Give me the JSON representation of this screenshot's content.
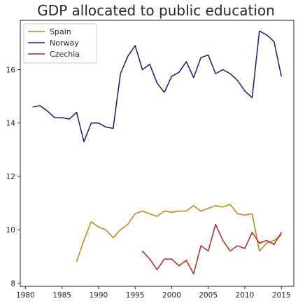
{
  "chart_data": {
    "type": "line",
    "title": "GDP allocated to public education",
    "xlabel": "",
    "ylabel": "",
    "xlim": [
      1979.3,
      2016.7
    ],
    "ylim": [
      7.88,
      17.85
    ],
    "x_ticks": [
      1980,
      1985,
      1990,
      1995,
      2000,
      2005,
      2010,
      2015
    ],
    "y_ticks": [
      8,
      10,
      12,
      14,
      16
    ],
    "grid": false,
    "legend_position": "top-left",
    "series": [
      {
        "name": "Spain",
        "color": "#b8860b",
        "points": [
          [
            1987,
            8.8
          ],
          [
            1988,
            9.6
          ],
          [
            1989,
            10.3
          ],
          [
            1990,
            10.1
          ],
          [
            1991,
            10.0
          ],
          [
            1992,
            9.7
          ],
          [
            1993,
            10.0
          ],
          [
            1994,
            10.2
          ],
          [
            1995,
            10.6
          ],
          [
            1996,
            10.7
          ],
          [
            1997,
            10.6
          ],
          [
            1998,
            10.5
          ],
          [
            1999,
            10.7
          ],
          [
            2000,
            10.65
          ],
          [
            2001,
            10.7
          ],
          [
            2002,
            10.7
          ],
          [
            2003,
            10.9
          ],
          [
            2004,
            10.7
          ],
          [
            2005,
            10.8
          ],
          [
            2006,
            10.9
          ],
          [
            2007,
            10.85
          ],
          [
            2008,
            10.95
          ],
          [
            2009,
            10.6
          ],
          [
            2010,
            10.55
          ],
          [
            2011,
            10.6
          ],
          [
            2012,
            9.2
          ],
          [
            2013,
            9.5
          ],
          [
            2014,
            9.6
          ],
          [
            2015,
            9.8
          ]
        ]
      },
      {
        "name": "Norway",
        "color": "#191970",
        "points": [
          [
            1981,
            14.6
          ],
          [
            1982,
            14.65
          ],
          [
            1983,
            14.45
          ],
          [
            1984,
            14.2
          ],
          [
            1985,
            14.2
          ],
          [
            1986,
            14.15
          ],
          [
            1987,
            14.4
          ],
          [
            1988,
            13.3
          ],
          [
            1989,
            14.0
          ],
          [
            1990,
            14.0
          ],
          [
            1991,
            13.85
          ],
          [
            1992,
            13.8
          ],
          [
            1993,
            15.85
          ],
          [
            1994,
            16.5
          ],
          [
            1995,
            16.9
          ],
          [
            1996,
            16.0
          ],
          [
            1997,
            16.2
          ],
          [
            1998,
            15.5
          ],
          [
            1999,
            15.15
          ],
          [
            2000,
            15.75
          ],
          [
            2001,
            15.9
          ],
          [
            2002,
            16.3
          ],
          [
            2003,
            15.7
          ],
          [
            2004,
            16.45
          ],
          [
            2005,
            16.55
          ],
          [
            2006,
            15.85
          ],
          [
            2007,
            16.0
          ],
          [
            2008,
            15.85
          ],
          [
            2009,
            15.6
          ],
          [
            2010,
            15.2
          ],
          [
            2011,
            14.95
          ],
          [
            2012,
            17.45
          ],
          [
            2013,
            17.3
          ],
          [
            2014,
            17.05
          ],
          [
            2015,
            15.75
          ]
        ]
      },
      {
        "name": "Czechia",
        "color": "#b22222",
        "points": [
          [
            1996,
            9.2
          ],
          [
            1997,
            8.9
          ],
          [
            1998,
            8.5
          ],
          [
            1999,
            8.9
          ],
          [
            2000,
            8.9
          ],
          [
            2001,
            8.65
          ],
          [
            2002,
            8.85
          ],
          [
            2003,
            8.35
          ],
          [
            2004,
            9.4
          ],
          [
            2005,
            9.2
          ],
          [
            2006,
            10.2
          ],
          [
            2007,
            9.6
          ],
          [
            2008,
            9.2
          ],
          [
            2009,
            9.4
          ],
          [
            2010,
            9.3
          ],
          [
            2011,
            9.9
          ],
          [
            2012,
            9.5
          ],
          [
            2013,
            9.6
          ],
          [
            2014,
            9.45
          ],
          [
            2015,
            9.9
          ]
        ]
      }
    ]
  }
}
